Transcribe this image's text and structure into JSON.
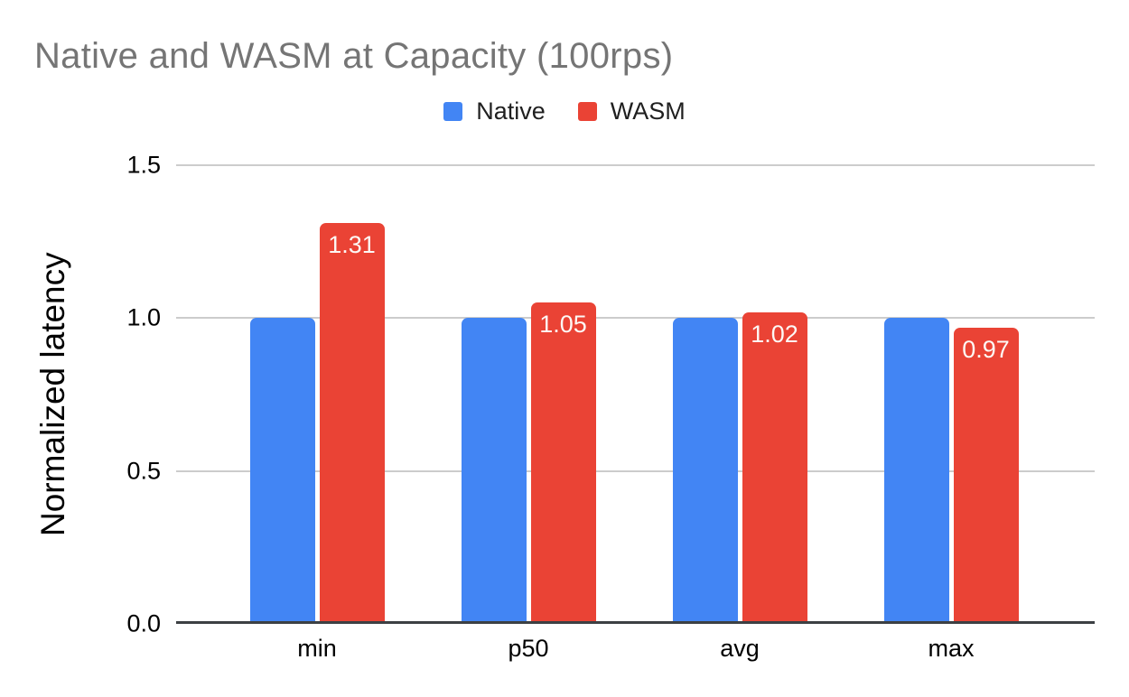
{
  "chart_data": {
    "type": "bar",
    "title": "Native and WASM at Capacity (100rps)",
    "xlabel": "",
    "ylabel": "Normalized latency",
    "categories": [
      "min",
      "p50",
      "avg",
      "max"
    ],
    "series": [
      {
        "name": "Native",
        "color": "#4285F4",
        "values": [
          1.0,
          1.0,
          1.0,
          1.0
        ],
        "data_labels": [
          "",
          "",
          "",
          ""
        ]
      },
      {
        "name": "WASM",
        "color": "#EA4335",
        "values": [
          1.31,
          1.05,
          1.02,
          0.97
        ],
        "data_labels": [
          "1.31",
          "1.05",
          "1.02",
          "0.97"
        ]
      }
    ],
    "ylim": [
      0,
      1.5
    ],
    "yticks": [
      0.0,
      0.5,
      1.0,
      1.5
    ],
    "ytick_labels": [
      "0.0",
      "0.5",
      "1.0",
      "1.5"
    ],
    "grid": true,
    "legend_position": "top",
    "title_color": "#757575",
    "data_label_color": "#ffffff"
  }
}
